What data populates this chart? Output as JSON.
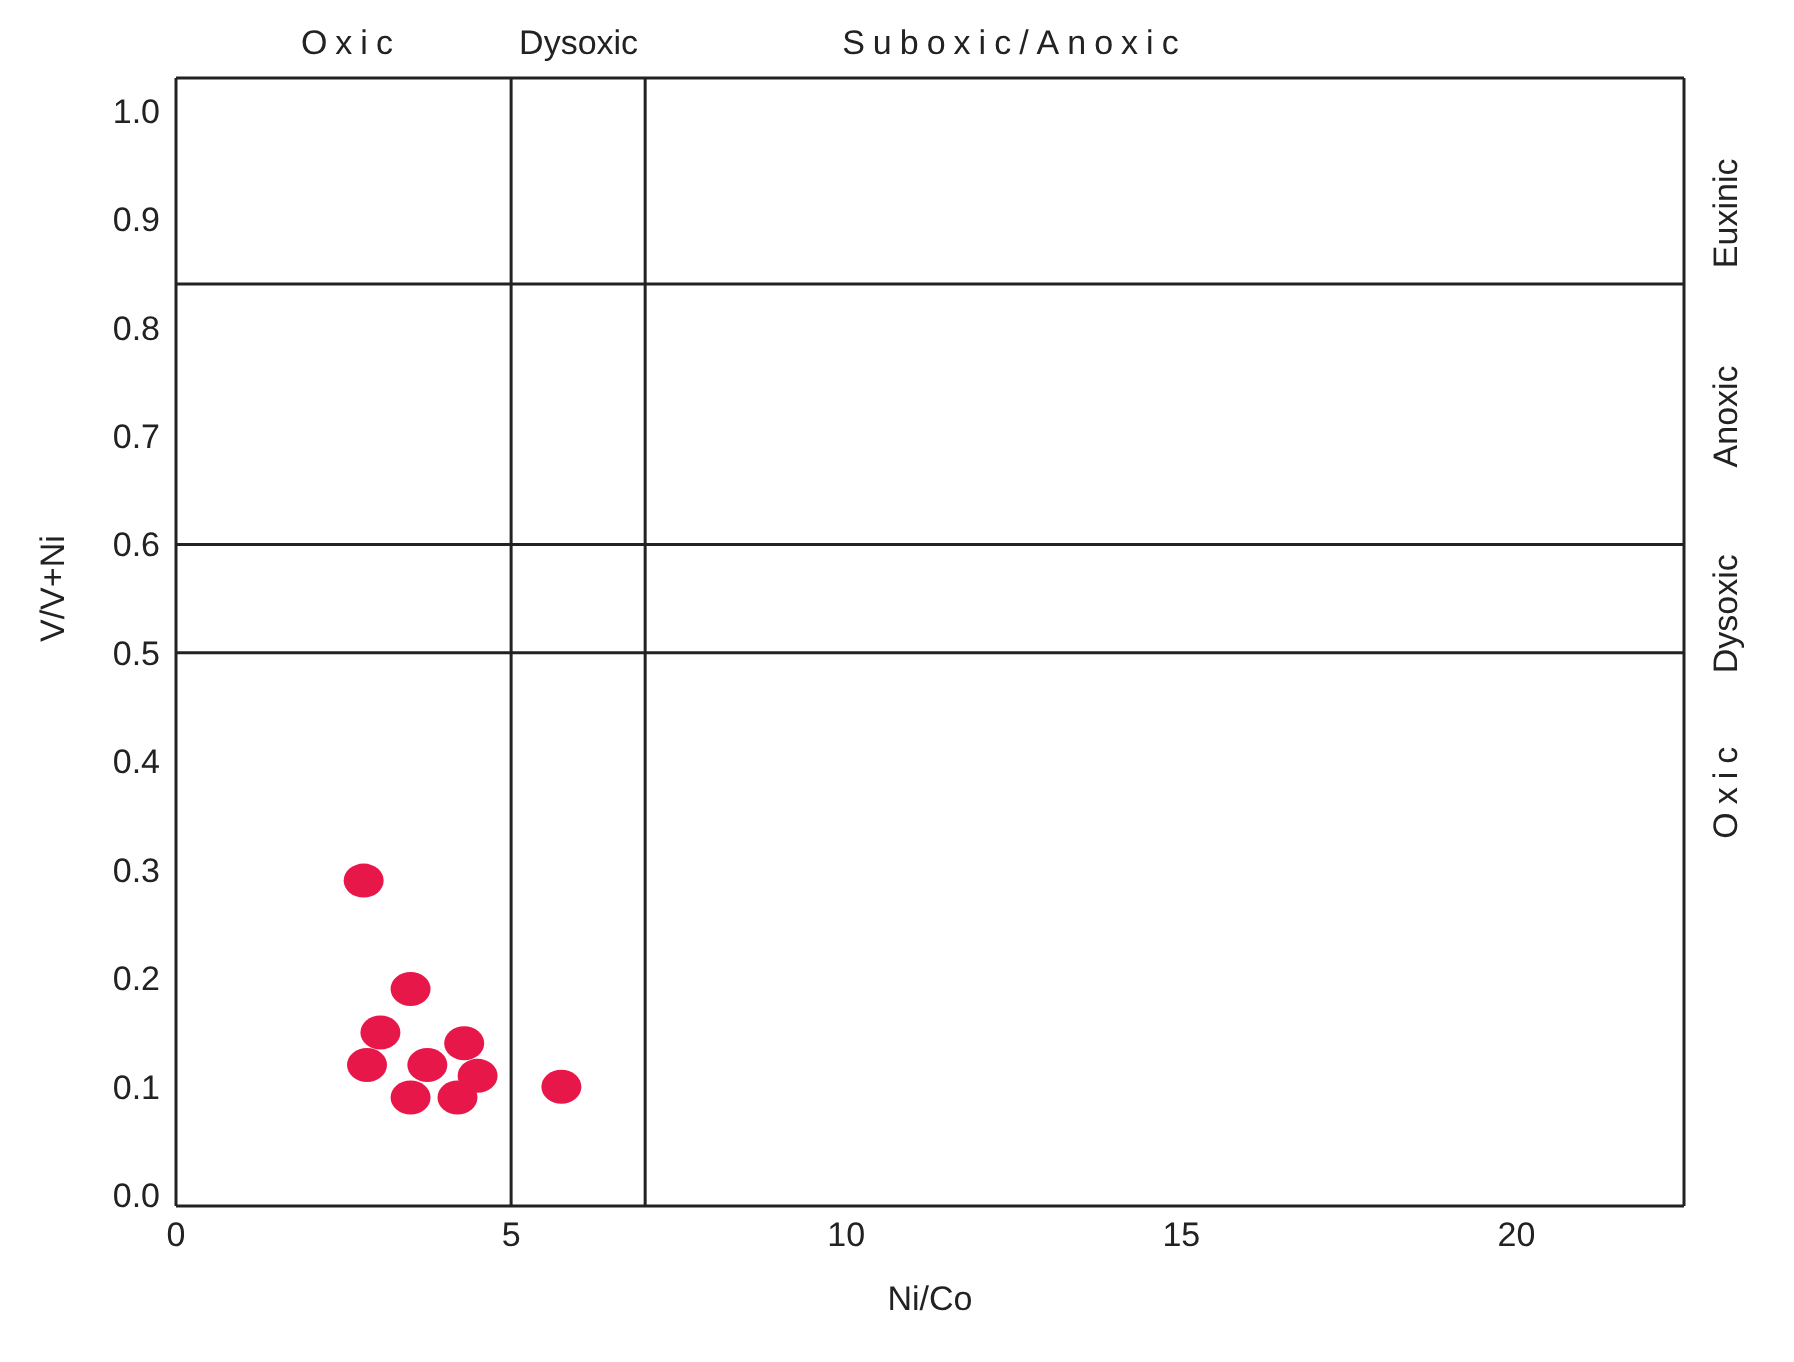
{
  "chart_data": {
    "type": "scatter",
    "xlabel": "Ni/Co",
    "ylabel": "V/V+Ni",
    "x": [
      2.8,
      3.5,
      3.05,
      4.3,
      2.85,
      3.75,
      4.5,
      3.5,
      4.2,
      5.75
    ],
    "values": [
      0.29,
      0.19,
      0.15,
      0.14,
      0.12,
      0.12,
      0.11,
      0.09,
      0.09,
      0.1
    ],
    "color": "#e8174a",
    "marker": "circle",
    "grid": false,
    "xlim": [
      0,
      22.5
    ],
    "xticks": [
      0,
      5,
      10,
      15,
      20
    ],
    "ylim": [
      -0.01,
      1.03
    ],
    "yticks": [
      {
        "value": 0,
        "label": "0.0"
      },
      {
        "value": 0.1,
        "label": "0.1"
      },
      {
        "value": 0.2,
        "label": "0.2"
      },
      {
        "value": 0.3,
        "label": "0.3"
      },
      {
        "value": 0.4,
        "label": "0.4"
      },
      {
        "value": 0.5,
        "label": "0.5"
      },
      {
        "value": 0.6,
        "label": "0.6"
      },
      {
        "value": 0.7,
        "label": "0.7"
      },
      {
        "value": 0.8,
        "label": "0.8"
      },
      {
        "value": 0.9,
        "label": "0.9"
      },
      {
        "value": 1,
        "label": "1.0"
      }
    ],
    "ref_lines": [
      {
        "axis": "x",
        "value": 5
      },
      {
        "axis": "x",
        "value": 7
      },
      {
        "axis": "y",
        "value": 0.5
      },
      {
        "axis": "y",
        "value": 0.6
      },
      {
        "axis": "y",
        "value": 0.84
      }
    ],
    "annotations": [
      "Oxic",
      "Dysoxic",
      "Suboxic/Anoxic",
      "Oxic",
      "Dysoxic",
      "Anoxic",
      "Euxinic"
    ]
  }
}
